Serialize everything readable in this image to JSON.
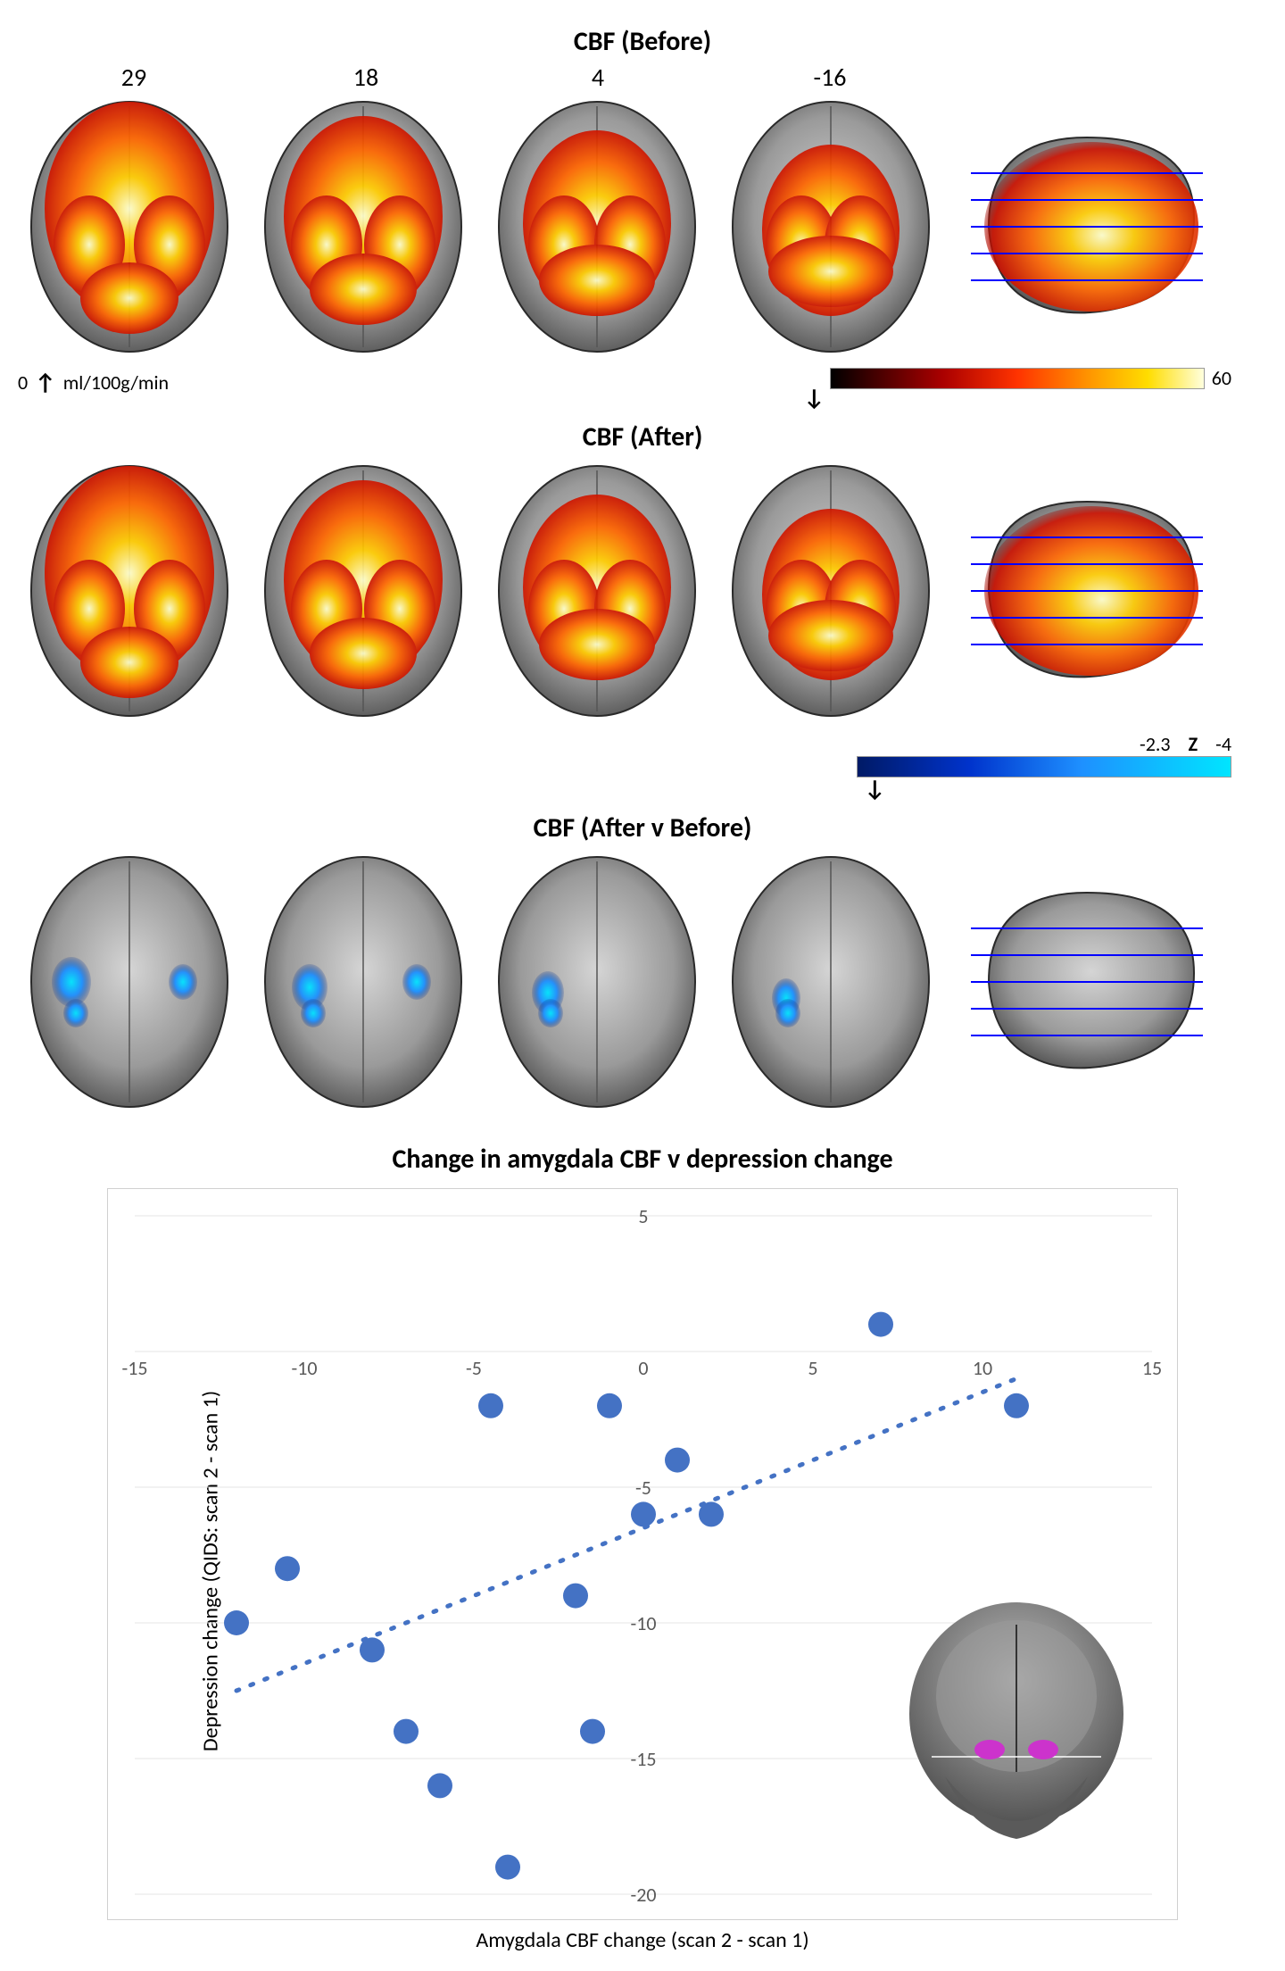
{
  "figure": {
    "top": {
      "slice_z_coords": [
        "29",
        "18",
        "4",
        "-16"
      ],
      "rows": [
        {
          "title": "CBF (Before)",
          "mode": "hot"
        },
        {
          "title": "CBF (After)",
          "mode": "hot"
        },
        {
          "title": "CBF (After v Before)",
          "mode": "diff"
        }
      ],
      "hot_colorbar": {
        "min_label": "0",
        "max_label": "60",
        "unit": "ml/100g/min",
        "gradient_stops": [
          "#000000",
          "#550000",
          "#aa0000",
          "#ff3300",
          "#ff9900",
          "#ffdd00",
          "#ffffdd"
        ]
      },
      "z_colorbar": {
        "min_label": "-2.3",
        "max_label": "-4",
        "title": "Z",
        "gradient_stops": [
          "#001a66",
          "#0033cc",
          "#1e90ff",
          "#00e5ff"
        ]
      },
      "slice_line_color": "#0000ff",
      "brain_gray_dark": "#3a3a3a",
      "brain_gray_mid": "#8a8a8a",
      "brain_gray_light": "#c8c8c8"
    },
    "scatter": {
      "title": "Change in amygdala CBF v depression change",
      "x_label": "Amygdala CBF change (scan 2 - scan 1)",
      "y_label": "Depression change (QIDS: scan 2 - scan 1)",
      "title_fontsize": 30,
      "axis_label_fontsize": 24,
      "tick_fontsize": 22,
      "xlim": [
        -15,
        15
      ],
      "ylim": [
        -20,
        5
      ],
      "xtick_step": 5,
      "ytick_step": 5,
      "point_color": "#4472c4",
      "point_radius": 14,
      "trend_dash": "3 14",
      "border_color": "#d0d0d0",
      "grid_color": "#e6e6e6",
      "tick_label_color": "#595959",
      "points": [
        {
          "x": -12.0,
          "y": -10.0
        },
        {
          "x": -10.5,
          "y": -8.0
        },
        {
          "x": -8.0,
          "y": -11.0
        },
        {
          "x": -7.0,
          "y": -14.0
        },
        {
          "x": -6.0,
          "y": -16.0
        },
        {
          "x": -4.5,
          "y": -2.0
        },
        {
          "x": -4.0,
          "y": -19.0
        },
        {
          "x": -2.0,
          "y": -9.0
        },
        {
          "x": -1.5,
          "y": -14.0
        },
        {
          "x": -1.0,
          "y": -2.0
        },
        {
          "x": 0.0,
          "y": -6.0
        },
        {
          "x": 1.0,
          "y": -4.0
        },
        {
          "x": 2.0,
          "y": -6.0
        },
        {
          "x": 7.0,
          "y": 1.0
        },
        {
          "x": 11.0,
          "y": -2.0
        }
      ],
      "trend_line": {
        "x1": -12.0,
        "y1": -12.5,
        "x2": 11.0,
        "y2": -1.0
      },
      "inset_amygdala_color": "#cc33cc"
    }
  }
}
